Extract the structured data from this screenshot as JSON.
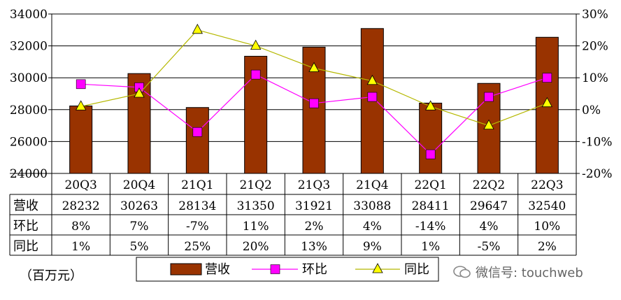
{
  "chart_data": {
    "type": "bar+line",
    "categories": [
      "20Q3",
      "20Q4",
      "21Q1",
      "21Q2",
      "21Q3",
      "21Q4",
      "22Q1",
      "22Q2",
      "22Q3"
    ],
    "series": [
      {
        "name": "营收",
        "type": "bar",
        "axis": "left",
        "color": "#993300",
        "values": [
          28232,
          30263,
          28134,
          31350,
          31921,
          33088,
          28411,
          29647,
          32540
        ]
      },
      {
        "name": "环比",
        "type": "line",
        "axis": "right",
        "color": "#ff00ff",
        "marker": "square",
        "values": [
          8,
          7,
          -7,
          11,
          2,
          4,
          -14,
          4,
          10
        ]
      },
      {
        "name": "同比",
        "type": "line",
        "axis": "right",
        "color": "#b5b800",
        "marker": "triangle",
        "values": [
          1,
          5,
          25,
          20,
          13,
          9,
          1,
          -5,
          2
        ]
      }
    ],
    "y_left": {
      "min": 24000,
      "max": 34000,
      "ticks": [
        "24000",
        "26000",
        "28000",
        "30000",
        "32000",
        "34000"
      ]
    },
    "y_right": {
      "min": -20,
      "max": 30,
      "ticks": [
        "-20%",
        "-10%",
        "0%",
        "10%",
        "20%",
        "30%"
      ]
    },
    "table": {
      "rows": [
        {
          "label": "营收",
          "cells": [
            "28232",
            "30263",
            "28134",
            "31350",
            "31921",
            "33088",
            "28411",
            "29647",
            "32540"
          ]
        },
        {
          "label": "环比",
          "cells": [
            "8%",
            "7%",
            "-7%",
            "11%",
            "2%",
            "4%",
            "-14%",
            "4%",
            "10%"
          ]
        },
        {
          "label": "同比",
          "cells": [
            "1%",
            "5%",
            "25%",
            "20%",
            "13%",
            "9%",
            "1%",
            "-5%",
            "2%"
          ]
        }
      ]
    },
    "legend": {
      "position": "bottom",
      "entries": [
        "营收",
        "环比",
        "同比"
      ]
    },
    "grid": true,
    "unit_label": "（百万元）"
  },
  "watermark": "微信号: touchweb",
  "colors": {
    "bar": "#993300",
    "qoq": "#ff00ff",
    "qoq_marker": "#ff00ff",
    "yoy": "#b5b800",
    "yoy_marker": "#ffff00"
  }
}
